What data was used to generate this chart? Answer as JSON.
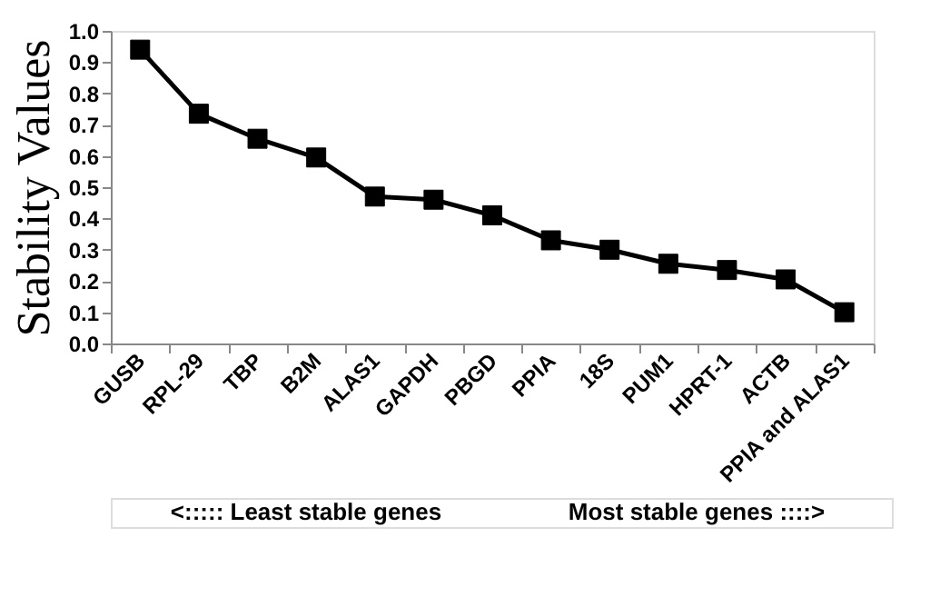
{
  "chart_data": {
    "type": "line",
    "ylabel": "Stability Values",
    "categories": [
      "GUSB",
      "RPL-29",
      "TBP",
      "B2M",
      "ALAS1",
      "GAPDH",
      "PBGD",
      "PPIA",
      "18S",
      "PUM1",
      "HPRT-1",
      "ACTB",
      "PPIA and ALAS1"
    ],
    "series": [
      {
        "color": "#000000",
        "values": [
          0.94,
          0.735,
          0.655,
          0.595,
          0.47,
          0.46,
          0.41,
          0.33,
          0.3,
          0.255,
          0.235,
          0.205,
          0.1
        ]
      }
    ],
    "ylim": [
      0,
      1.0
    ],
    "yticks": [
      {
        "value": 0,
        "label": "0.0"
      },
      {
        "value": 0.1,
        "label": "0.1"
      },
      {
        "value": 0.2,
        "label": "0.2"
      },
      {
        "value": 0.3,
        "label": "0.3"
      },
      {
        "value": 0.4,
        "label": "0.4"
      },
      {
        "value": 0.5,
        "label": "0.5"
      },
      {
        "value": 0.6,
        "label": "0.6"
      },
      {
        "value": 0.7,
        "label": "0.7"
      },
      {
        "value": 0.8,
        "label": "0.8"
      },
      {
        "value": 0.9,
        "label": "0.9"
      },
      {
        "value": 1.0,
        "label": "1.0"
      }
    ],
    "marker": "square",
    "line_style": "solid",
    "grid": false,
    "legend": false,
    "annotations": [
      "<::::: Least stable genes",
      "Most stable genes ::::>"
    ]
  }
}
